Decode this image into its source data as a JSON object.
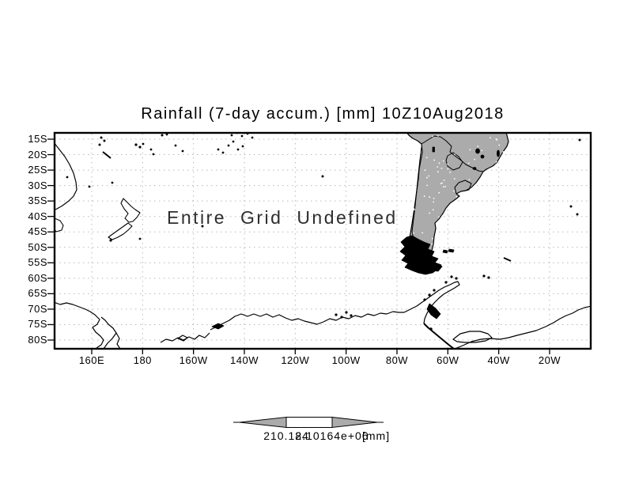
{
  "title": "Rainfall (7-day accum.) [mm] 10Z10Aug2018",
  "overlay_message": "Entire Grid Undefined",
  "axes": {
    "lat_labels": [
      "15S",
      "20S",
      "25S",
      "30S",
      "35S",
      "40S",
      "45S",
      "50S",
      "55S",
      "60S",
      "65S",
      "70S",
      "75S",
      "80S"
    ],
    "lon_labels": [
      "160E",
      "180",
      "160W",
      "140W",
      "120W",
      "100W",
      "80W",
      "60W",
      "40W",
      "20W"
    ]
  },
  "colorbar": {
    "min_label": "210.184",
    "max_label": "2.10164e+06",
    "units_label": "[mm]"
  },
  "colors": {
    "land_fill": "#ababab",
    "colorbar_arrow_fill": "#ababab",
    "gridline": "#b8b8b8",
    "frame": "#000000",
    "background": "#ffffff"
  },
  "map_features": [
    "australia-east-coast",
    "tasmania",
    "new-zealand",
    "pacific-islands",
    "south-america",
    "patagonia-fjords",
    "tierra-del-fuego",
    "falkland-islands",
    "south-georgia",
    "antarctic-peninsula",
    "antarctica-coastline"
  ],
  "chart_data": {
    "type": "heatmap",
    "title": "Rainfall (7-day accum.) [mm] 10Z10Aug2018",
    "variable": "Rainfall (7-day accum.)",
    "units": "mm",
    "valid_time": "10Z10Aug2018",
    "x_axis": {
      "kind": "longitude",
      "tick_labels": [
        "160E",
        "180",
        "160W",
        "140W",
        "120W",
        "100W",
        "80W",
        "60W",
        "40W",
        "20W"
      ]
    },
    "y_axis": {
      "kind": "latitude",
      "tick_labels": [
        "15S",
        "20S",
        "25S",
        "30S",
        "35S",
        "40S",
        "45S",
        "50S",
        "55S",
        "60S",
        "65S",
        "70S",
        "75S",
        "80S"
      ]
    },
    "grid": "dotted",
    "values": [],
    "status_annotation": "Entire Grid Undefined",
    "colorbar": {
      "position": "bottom",
      "edge_labels": [
        "210.184",
        "2.10164e+06"
      ],
      "units": "[mm]"
    }
  }
}
